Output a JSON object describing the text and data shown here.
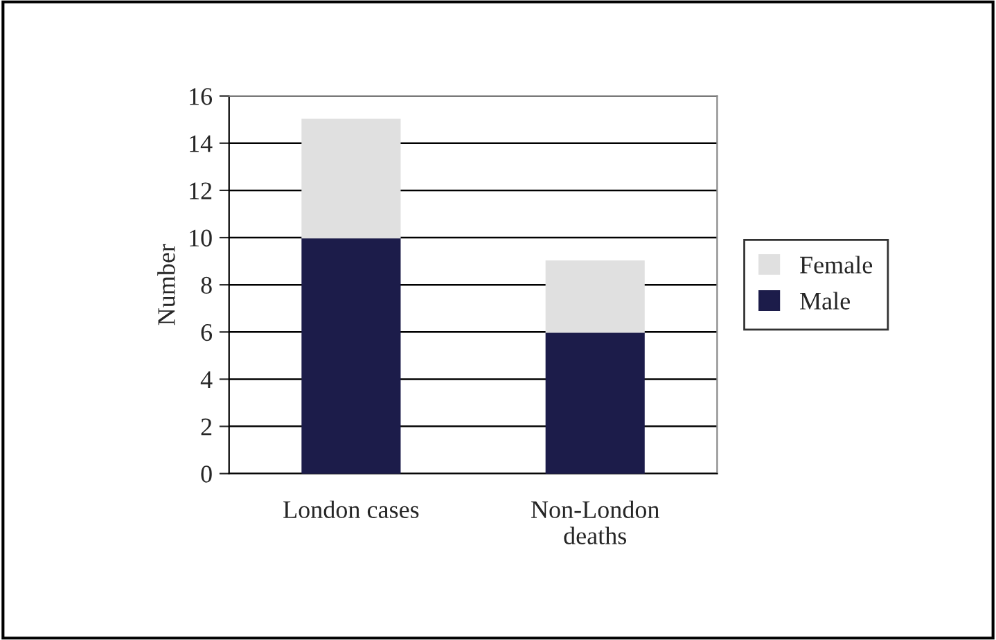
{
  "chart_data": {
    "type": "bar",
    "stacked": true,
    "ylabel": "Number",
    "categories": [
      "London cases",
      "Non-London deaths"
    ],
    "series": [
      {
        "name": "Male",
        "color": "#1c1c4a",
        "values": [
          10,
          6
        ]
      },
      {
        "name": "Female",
        "color": "#e0e0e0",
        "values": [
          5,
          3
        ]
      }
    ],
    "ylim": [
      0,
      16
    ],
    "yticks": [
      0,
      2,
      4,
      6,
      8,
      10,
      12,
      14,
      16
    ],
    "grid": "y",
    "legend": "right"
  }
}
